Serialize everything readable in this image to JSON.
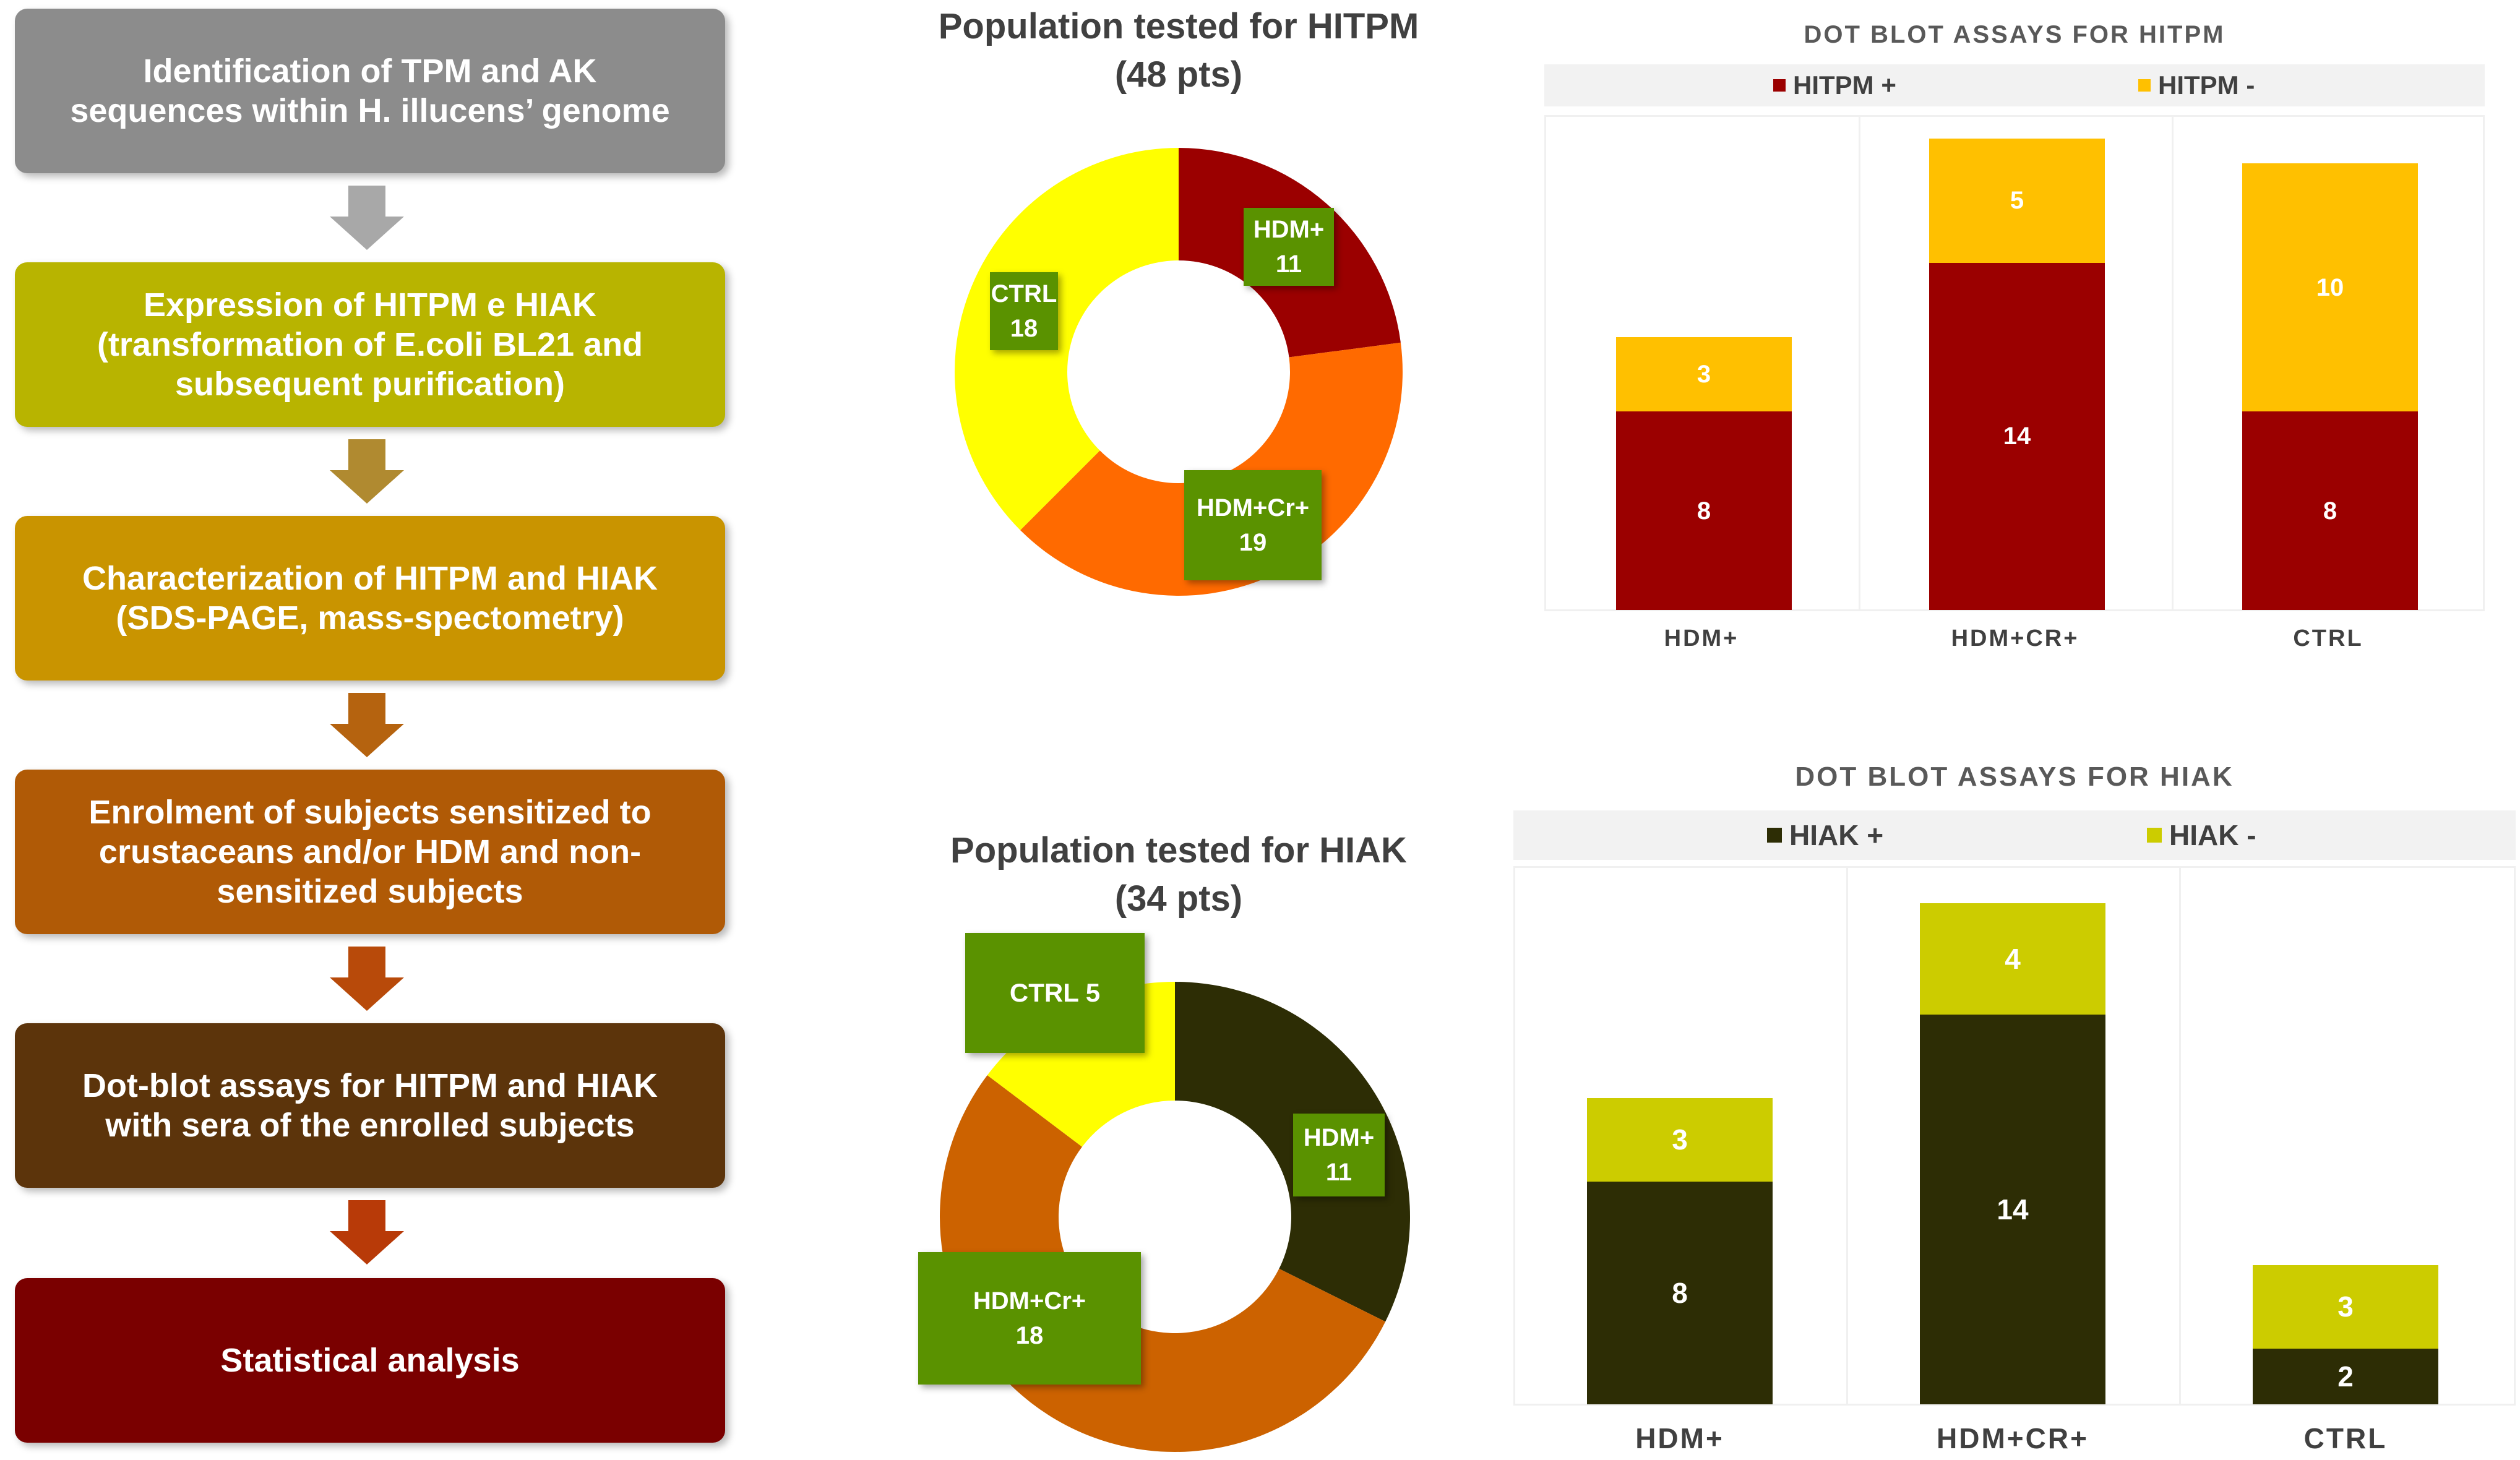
{
  "flowchart": {
    "steps": [
      {
        "lines": [
          "Identification of TPM and AK",
          "sequences within H. illucens’ genome"
        ],
        "color": "#8c8c8c"
      },
      {
        "lines": [
          "Expression of HITPM e HIAK",
          "(transformation of E.coli BL21 and",
          "subsequent purification)"
        ],
        "color": "#b8b400"
      },
      {
        "lines": [
          "Characterization of HITPM and HIAK",
          "(SDS-PAGE, mass-spectometry)"
        ],
        "color": "#c99400"
      },
      {
        "lines": [
          "Enrolment of subjects sensitized to",
          "crustaceans and/or HDM and non-",
          "sensitized subjects"
        ],
        "color": "#b05a06"
      },
      {
        "lines": [
          "Dot-blot assays for HITPM and HIAK",
          "with sera of the enrolled subjects"
        ],
        "color": "#5c340b"
      },
      {
        "lines": [
          "Statistical analysis"
        ],
        "color": "#7a0000"
      }
    ],
    "arrow_colors": [
      "#a8a8a8",
      "#b08a30",
      "#b5630f",
      "#b84a0a",
      "#b83a08"
    ]
  },
  "chart_data": [
    {
      "type": "pie",
      "title": [
        "Population tested for HITPM",
        "(48 pts)"
      ],
      "total": 48,
      "slices": [
        {
          "label": "HDM+",
          "value": 11,
          "color": "#9b0000"
        },
        {
          "label": "HDM+Cr+",
          "value": 19,
          "color": "#ff6a00"
        },
        {
          "label": "CTRL",
          "value": 18,
          "color": "#ffff00"
        }
      ],
      "slice_labels": [
        {
          "name": "HDM+",
          "value": "11"
        },
        {
          "name": "HDM+Cr+",
          "value": "19"
        },
        {
          "name": "CTRL",
          "value": "18"
        }
      ]
    },
    {
      "type": "pie",
      "title": [
        "Population tested for HIAK",
        "(34 pts)"
      ],
      "total": 34,
      "slices": [
        {
          "label": "HDM+",
          "value": 11,
          "color": "#2d2d05"
        },
        {
          "label": "HDM+Cr+",
          "value": 18,
          "color": "#cc6200"
        },
        {
          "label": "CTRL",
          "value": 5,
          "color": "#ffff00"
        }
      ],
      "slice_labels": [
        {
          "name": "HDM+",
          "value": "11"
        },
        {
          "name": "HDM+Cr+",
          "value": "18"
        },
        {
          "name": "CTRL",
          "text": "CTRL 5"
        }
      ]
    },
    {
      "type": "bar",
      "stacked": true,
      "title": "DOT BLOT ASSAYS FOR HITPM",
      "categories": [
        "HDM+",
        "HDM+CR+",
        "CTRL"
      ],
      "ylim": [
        0,
        19
      ],
      "legend_position": "top",
      "series": [
        {
          "name": "HITPM +",
          "values": [
            8,
            14,
            8
          ],
          "color": "#9b0000"
        },
        {
          "name": "HITPM -",
          "values": [
            3,
            5,
            10
          ],
          "color": "#ffc000"
        }
      ]
    },
    {
      "type": "bar",
      "stacked": true,
      "title": "DOT BLOT ASSAYS FOR HIAK",
      "categories": [
        "HDM+",
        "HDM+CR+",
        "CTRL"
      ],
      "ylim": [
        0,
        18
      ],
      "legend_position": "top",
      "series": [
        {
          "name": "HIAK +",
          "values": [
            8,
            14,
            2
          ],
          "color": "#2d2d05"
        },
        {
          "name": "HIAK -",
          "values": [
            3,
            4,
            3
          ],
          "color": "#cccc00"
        }
      ]
    }
  ]
}
